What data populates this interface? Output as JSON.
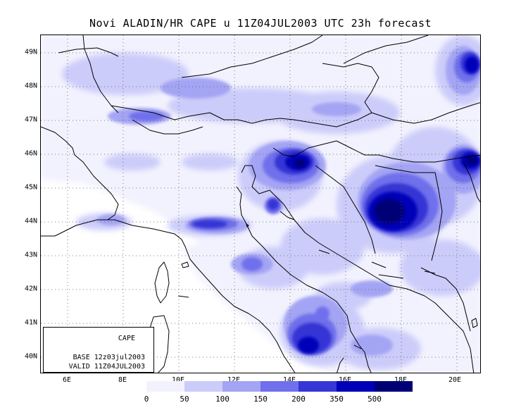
{
  "title": "Novi ALADIN/HR CAPE u 11Z04JUL2003 UTC 23h forecast",
  "map": {
    "lat_labels": [
      "49N",
      "48N",
      "47N",
      "46N",
      "45N",
      "44N",
      "43N",
      "42N",
      "41N",
      "40N"
    ],
    "lon_labels": [
      "6E",
      "8E",
      "10E",
      "12E",
      "14E",
      "16E",
      "18E",
      "20E"
    ],
    "grid": "dotted",
    "land_outline_color": "#000000"
  },
  "info_box": {
    "variable": "CAPE",
    "base": "BASE 12z03jul2003",
    "valid": "VALID 11Z04JUL2003"
  },
  "legend": {
    "colors": [
      "#f2f2fe",
      "#ccccfa",
      "#a4a4f4",
      "#7070ec",
      "#3636d6",
      "#0000b8",
      "#000076"
    ],
    "tick_labels": [
      "0",
      "50",
      "100",
      "150",
      "200",
      "350",
      "500"
    ]
  }
}
